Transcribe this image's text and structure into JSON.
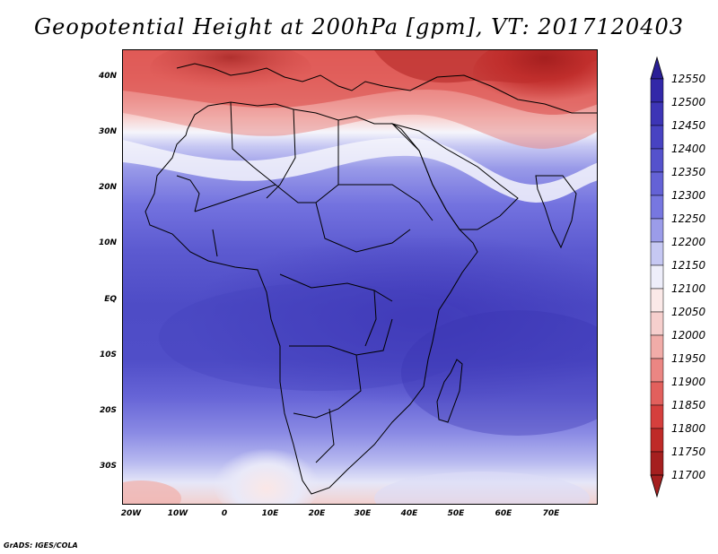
{
  "title": "Geopotential Height at 200hPa [gpm], VT: 2017120403",
  "footer": "GrADS: IGES/COLA",
  "map": {
    "region": "Africa",
    "lon_range": [
      -22,
      80
    ],
    "lat_range": [
      -37,
      45
    ],
    "y_ticks": [
      "40N",
      "30N",
      "20N",
      "10N",
      "EQ",
      "10S",
      "20S",
      "30S"
    ],
    "x_ticks": [
      "20W",
      "10W",
      "0",
      "10E",
      "20E",
      "30E",
      "40E",
      "50E",
      "60E",
      "70E"
    ]
  },
  "colorbar": {
    "levels": [
      "12550",
      "12500",
      "12450",
      "12400",
      "12350",
      "12300",
      "12250",
      "12200",
      "12150",
      "12100",
      "12050",
      "12000",
      "11950",
      "11900",
      "11850",
      "11800",
      "11750",
      "11700"
    ],
    "colors": [
      "#2a1f96",
      "#3228a8",
      "#3d35b6",
      "#4843c2",
      "#5552cc",
      "#6462d6",
      "#7777e0",
      "#9b9ce9",
      "#c6c8f3",
      "#eeeefa",
      "#fbe9e8",
      "#f6cfcd",
      "#f1aca8",
      "#eb8683",
      "#e2605d",
      "#d53f3d",
      "#bf2a28",
      "#a51f1f"
    ],
    "top_arrow_color": "#2a1f96",
    "bottom_arrow_color": "#a51f1f"
  }
}
